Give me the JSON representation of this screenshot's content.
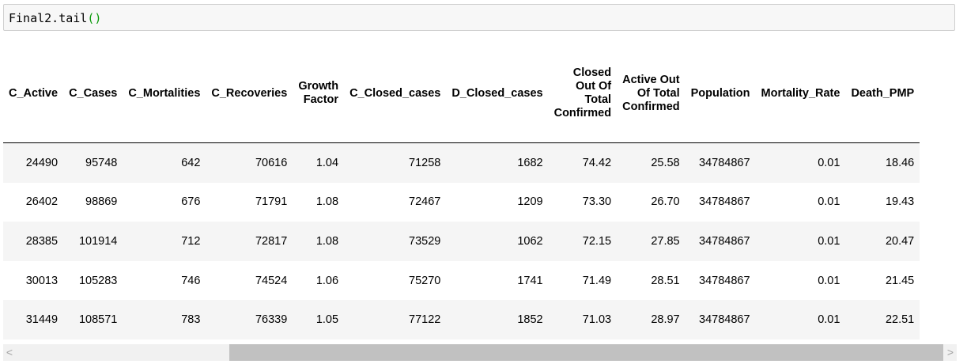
{
  "code": {
    "text": "Final2.tail",
    "parens": "()"
  },
  "table": {
    "columns": [
      "C_Active",
      "C_Cases",
      "C_Mortalities",
      "C_Recoveries",
      "Growth\nFactor",
      "C_Closed_cases",
      "D_Closed_cases",
      "Closed\nOut Of\nTotal\nConfirmed",
      "Active Out\nOf Total\nConfirmed",
      "Population",
      "Mortality_Rate",
      "Death_PMP"
    ],
    "rows": [
      [
        "24490",
        "95748",
        "642",
        "70616",
        "1.04",
        "71258",
        "1682",
        "74.42",
        "25.58",
        "34784867",
        "0.01",
        "18.46"
      ],
      [
        "26402",
        "98869",
        "676",
        "71791",
        "1.08",
        "72467",
        "1209",
        "73.30",
        "26.70",
        "34784867",
        "0.01",
        "19.43"
      ],
      [
        "28385",
        "101914",
        "712",
        "72817",
        "1.08",
        "73529",
        "1062",
        "72.15",
        "27.85",
        "34784867",
        "0.01",
        "20.47"
      ],
      [
        "30013",
        "105283",
        "746",
        "74524",
        "1.06",
        "75270",
        "1741",
        "71.49",
        "28.51",
        "34784867",
        "0.01",
        "21.45"
      ],
      [
        "31449",
        "108571",
        "783",
        "76339",
        "1.05",
        "77122",
        "1852",
        "71.03",
        "28.97",
        "34784867",
        "0.01",
        "22.51"
      ]
    ]
  },
  "scrollbar": {
    "left_arrow": "<",
    "right_arrow": ">",
    "position": 0.25
  }
}
